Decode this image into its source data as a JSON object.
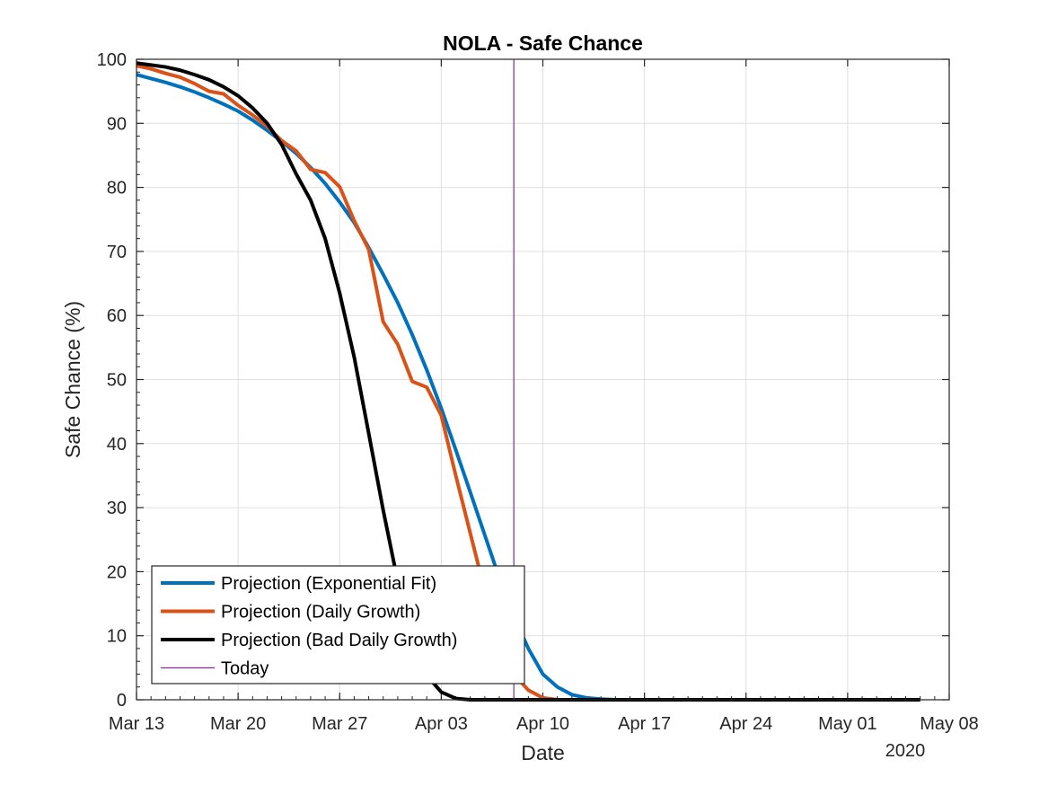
{
  "chart_data": {
    "type": "line",
    "title": "NOLA - Safe Chance",
    "xlabel": "Date",
    "ylabel": "Safe Chance (%)",
    "x_year_label": "2020",
    "xlim": [
      "2020-03-13",
      "2020-05-08"
    ],
    "ylim": [
      0,
      100
    ],
    "x_ticks": [
      {
        "date": "2020-03-13",
        "label": "Mar 13"
      },
      {
        "date": "2020-03-20",
        "label": "Mar 20"
      },
      {
        "date": "2020-03-27",
        "label": "Mar 27"
      },
      {
        "date": "2020-04-03",
        "label": "Apr 03"
      },
      {
        "date": "2020-04-10",
        "label": "Apr 10"
      },
      {
        "date": "2020-04-17",
        "label": "Apr 17"
      },
      {
        "date": "2020-04-24",
        "label": "Apr 24"
      },
      {
        "date": "2020-05-01",
        "label": "May 01"
      },
      {
        "date": "2020-05-08",
        "label": "May 08"
      }
    ],
    "y_ticks": [
      0,
      10,
      20,
      30,
      40,
      50,
      60,
      70,
      80,
      90,
      100
    ],
    "grid": true,
    "legend_position": "bottom-left",
    "today": {
      "name": "Today",
      "date": "2020-04-08",
      "color": "#7E2F8E"
    },
    "series": [
      {
        "name": "Projection (Exponential Fit)",
        "color": "#0072BD",
        "points": [
          [
            "2020-03-13",
            97.6
          ],
          [
            "2020-03-14",
            97.0
          ],
          [
            "2020-03-15",
            96.4
          ],
          [
            "2020-03-16",
            95.7
          ],
          [
            "2020-03-17",
            94.9
          ],
          [
            "2020-03-18",
            94.0
          ],
          [
            "2020-03-19",
            93.0
          ],
          [
            "2020-03-20",
            91.9
          ],
          [
            "2020-03-21",
            90.5
          ],
          [
            "2020-03-22",
            88.9
          ],
          [
            "2020-03-23",
            87.2
          ],
          [
            "2020-03-24",
            85.3
          ],
          [
            "2020-03-25",
            83.1
          ],
          [
            "2020-03-26",
            80.6
          ],
          [
            "2020-03-27",
            77.7
          ],
          [
            "2020-03-28",
            74.5
          ],
          [
            "2020-03-29",
            70.6
          ],
          [
            "2020-03-30",
            66.4
          ],
          [
            "2020-03-31",
            62.0
          ],
          [
            "2020-04-01",
            57.0
          ],
          [
            "2020-04-02",
            51.5
          ],
          [
            "2020-04-03",
            45.5
          ],
          [
            "2020-04-04",
            39.0
          ],
          [
            "2020-04-05",
            32.4
          ],
          [
            "2020-04-06",
            25.7
          ],
          [
            "2020-04-07",
            19.0
          ],
          [
            "2020-04-08",
            13.0
          ],
          [
            "2020-04-09",
            8.0
          ],
          [
            "2020-04-10",
            4.0
          ],
          [
            "2020-04-11",
            2.0
          ],
          [
            "2020-04-12",
            0.8
          ],
          [
            "2020-04-13",
            0.3
          ],
          [
            "2020-04-14",
            0.1
          ],
          [
            "2020-04-15",
            0.0
          ],
          [
            "2020-05-06",
            0.0
          ]
        ]
      },
      {
        "name": "Projection (Daily Growth)",
        "color": "#D95319",
        "points": [
          [
            "2020-03-13",
            99.0
          ],
          [
            "2020-03-14",
            98.5
          ],
          [
            "2020-03-15",
            97.8
          ],
          [
            "2020-03-16",
            97.2
          ],
          [
            "2020-03-17",
            96.2
          ],
          [
            "2020-03-18",
            95.0
          ],
          [
            "2020-03-19",
            94.6
          ],
          [
            "2020-03-20",
            92.8
          ],
          [
            "2020-03-21",
            91.3
          ],
          [
            "2020-03-22",
            89.5
          ],
          [
            "2020-03-23",
            87.3
          ],
          [
            "2020-03-24",
            85.7
          ],
          [
            "2020-03-25",
            82.8
          ],
          [
            "2020-03-26",
            82.3
          ],
          [
            "2020-03-27",
            80.1
          ],
          [
            "2020-03-28",
            74.8
          ],
          [
            "2020-03-29",
            70.3
          ],
          [
            "2020-03-30",
            59.0
          ],
          [
            "2020-03-31",
            55.5
          ],
          [
            "2020-04-01",
            49.7
          ],
          [
            "2020-04-02",
            48.8
          ],
          [
            "2020-04-03",
            44.4
          ],
          [
            "2020-04-04",
            35.0
          ],
          [
            "2020-04-05",
            26.0
          ],
          [
            "2020-04-06",
            17.0
          ],
          [
            "2020-04-07",
            9.0
          ],
          [
            "2020-04-08",
            4.0
          ],
          [
            "2020-04-09",
            1.5
          ],
          [
            "2020-04-10",
            0.3
          ],
          [
            "2020-04-11",
            0.0
          ],
          [
            "2020-05-06",
            0.0
          ]
        ]
      },
      {
        "name": "Projection (Bad Daily Growth)",
        "color": "#000000",
        "points": [
          [
            "2020-03-13",
            99.4
          ],
          [
            "2020-03-14",
            99.1
          ],
          [
            "2020-03-15",
            98.8
          ],
          [
            "2020-03-16",
            98.3
          ],
          [
            "2020-03-17",
            97.6
          ],
          [
            "2020-03-18",
            96.8
          ],
          [
            "2020-03-19",
            95.7
          ],
          [
            "2020-03-20",
            94.3
          ],
          [
            "2020-03-21",
            92.4
          ],
          [
            "2020-03-22",
            90.0
          ],
          [
            "2020-03-23",
            86.7
          ],
          [
            "2020-03-24",
            82.1
          ],
          [
            "2020-03-25",
            78.0
          ],
          [
            "2020-03-26",
            72.0
          ],
          [
            "2020-03-27",
            63.5
          ],
          [
            "2020-03-28",
            53.5
          ],
          [
            "2020-03-29",
            41.6
          ],
          [
            "2020-03-30",
            29.6
          ],
          [
            "2020-03-31",
            18.5
          ],
          [
            "2020-04-01",
            9.5
          ],
          [
            "2020-04-02",
            3.8
          ],
          [
            "2020-04-03",
            1.2
          ],
          [
            "2020-04-04",
            0.2
          ],
          [
            "2020-04-05",
            0.0
          ],
          [
            "2020-05-06",
            0.0
          ]
        ]
      }
    ]
  }
}
